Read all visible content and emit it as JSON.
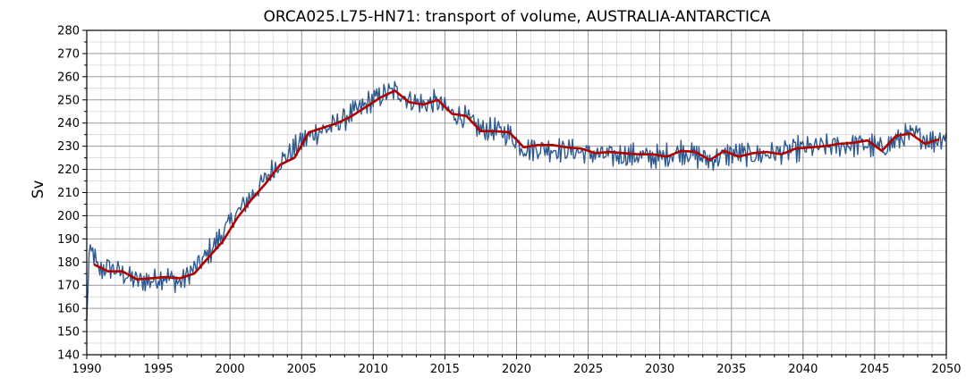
{
  "chart_data": {
    "type": "line",
    "title": "ORCA025.L75-HN71: transport of volume, AUSTRALIA-ANTARCTICA",
    "xlabel": "",
    "ylabel": "Sv",
    "xlim": [
      1990,
      2050
    ],
    "ylim": [
      140,
      280
    ],
    "x_ticks": [
      1990,
      1995,
      2000,
      2005,
      2010,
      2015,
      2020,
      2025,
      2030,
      2035,
      2040,
      2045,
      2050
    ],
    "y_ticks": [
      140,
      150,
      160,
      170,
      180,
      190,
      200,
      210,
      220,
      230,
      240,
      250,
      260,
      270,
      280
    ],
    "x_minor_step": 1,
    "y_minor_step": 5,
    "grid": true,
    "legend": "none",
    "series": [
      {
        "kind": "monthly",
        "color": "#2f5a8f",
        "anchors": [
          [
            1990.0,
            155
          ],
          [
            1990.15,
            182
          ],
          [
            1990.4,
            185
          ],
          [
            1990.8,
            176
          ],
          [
            1991.5,
            178
          ],
          [
            1992.5,
            175
          ],
          [
            1993.5,
            172
          ],
          [
            1994.5,
            172
          ],
          [
            1995.5,
            174
          ],
          [
            1996.5,
            171
          ],
          [
            1997.3,
            176
          ],
          [
            1998.0,
            180
          ],
          [
            1999.0,
            188
          ],
          [
            2000.0,
            197
          ],
          [
            2001.0,
            205
          ],
          [
            2002.0,
            212
          ],
          [
            2003.0,
            220
          ],
          [
            2004.0,
            226
          ],
          [
            2005.0,
            232
          ],
          [
            2006.0,
            236
          ],
          [
            2007.0,
            238
          ],
          [
            2008.0,
            242
          ],
          [
            2009.0,
            246
          ],
          [
            2010.0,
            250
          ],
          [
            2011.0,
            253
          ],
          [
            2011.6,
            254
          ],
          [
            2012.5,
            250
          ],
          [
            2013.5,
            248
          ],
          [
            2014.5,
            249
          ],
          [
            2015.5,
            244
          ],
          [
            2016.5,
            242
          ],
          [
            2017.5,
            237
          ],
          [
            2018.5,
            237
          ],
          [
            2019.5,
            235
          ],
          [
            2020.5,
            229
          ],
          [
            2022.0,
            229
          ],
          [
            2024.0,
            228
          ],
          [
            2026.0,
            226
          ],
          [
            2028.0,
            226
          ],
          [
            2030.0,
            225
          ],
          [
            2031.5,
            228
          ],
          [
            2033.5,
            224
          ],
          [
            2035.0,
            227
          ],
          [
            2036.5,
            226
          ],
          [
            2038.0,
            227
          ],
          [
            2040.0,
            229
          ],
          [
            2042.0,
            230
          ],
          [
            2044.0,
            231
          ],
          [
            2045.5,
            229
          ],
          [
            2047.0,
            234
          ],
          [
            2048.0,
            235
          ],
          [
            2049.0,
            232
          ],
          [
            2050.0,
            235
          ]
        ],
        "noise_amplitude": 5.5,
        "step": 0.0833
      },
      {
        "kind": "annual_mean",
        "color": "#b00000",
        "x": [
          1990.5,
          1991.5,
          1992.5,
          1993.5,
          1994.5,
          1995.5,
          1996.5,
          1997.5,
          1998.5,
          1999.5,
          2000.5,
          2001.5,
          2002.5,
          2003.5,
          2004.5,
          2005.5,
          2006.5,
          2007.5,
          2008.5,
          2009.5,
          2010.5,
          2011.5,
          2012.5,
          2013.5,
          2014.5,
          2015.5,
          2016.5,
          2017.5,
          2018.5,
          2019.5,
          2020.5,
          2021.5,
          2022.5,
          2023.5,
          2024.5,
          2025.5,
          2026.5,
          2027.5,
          2028.5,
          2029.5,
          2030.5,
          2031.5,
          2032.5,
          2033.5,
          2034.5,
          2035.5,
          2036.5,
          2037.5,
          2038.5,
          2039.5,
          2040.5,
          2041.5,
          2042.5,
          2043.5,
          2044.5,
          2045.5,
          2046.5,
          2047.5,
          2048.5,
          2049.5
        ],
        "y": [
          179,
          176,
          176,
          172.5,
          173,
          173.5,
          173,
          175,
          182,
          189,
          199,
          207,
          214,
          222,
          225,
          236,
          238,
          240,
          243,
          247,
          251,
          254,
          249,
          248,
          250,
          244,
          243,
          236.5,
          236.5,
          236,
          229.5,
          230.5,
          230.5,
          229.5,
          229,
          227,
          227.5,
          227,
          226.5,
          226.5,
          225.5,
          228,
          227.5,
          224,
          228,
          225.5,
          227,
          227.5,
          226.5,
          229,
          229.5,
          230,
          231,
          231.5,
          232.5,
          228,
          234.5,
          235.5,
          231,
          233
        ]
      }
    ]
  }
}
